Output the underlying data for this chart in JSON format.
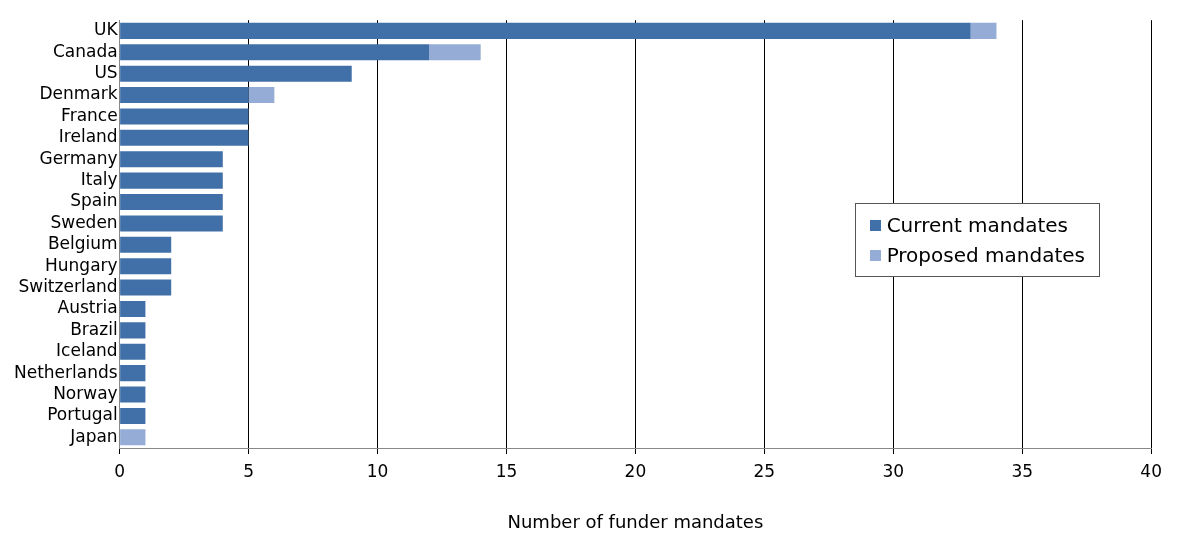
{
  "chart_data": {
    "type": "bar",
    "orientation": "horizontal",
    "stacked": true,
    "xlabel": "Number of funder mandates",
    "categories": [
      "UK",
      "Canada",
      "US",
      "Denmark",
      "France",
      "Ireland",
      "Germany",
      "Italy",
      "Spain",
      "Sweden",
      "Belgium",
      "Hungary",
      "Switzerland",
      "Austria",
      "Brazil",
      "Iceland",
      "Netherlands",
      "Norway",
      "Portugal",
      "Japan"
    ],
    "series": [
      {
        "name": "Current mandates",
        "color": "#4170a8",
        "values": [
          33,
          12,
          9,
          5,
          5,
          5,
          4,
          4,
          4,
          4,
          2,
          2,
          2,
          1,
          1,
          1,
          1,
          1,
          1,
          0
        ]
      },
      {
        "name": "Proposed mandates",
        "color": "#95acd6",
        "values": [
          1,
          2,
          0,
          1,
          0,
          0,
          0,
          0,
          0,
          0,
          0,
          0,
          0,
          0,
          0,
          0,
          0,
          0,
          0,
          1
        ]
      }
    ],
    "xlim": [
      0,
      40
    ],
    "xticks": [
      0,
      5,
      10,
      15,
      20,
      25,
      30,
      35,
      40
    ],
    "grid": "x",
    "legend": "right"
  }
}
